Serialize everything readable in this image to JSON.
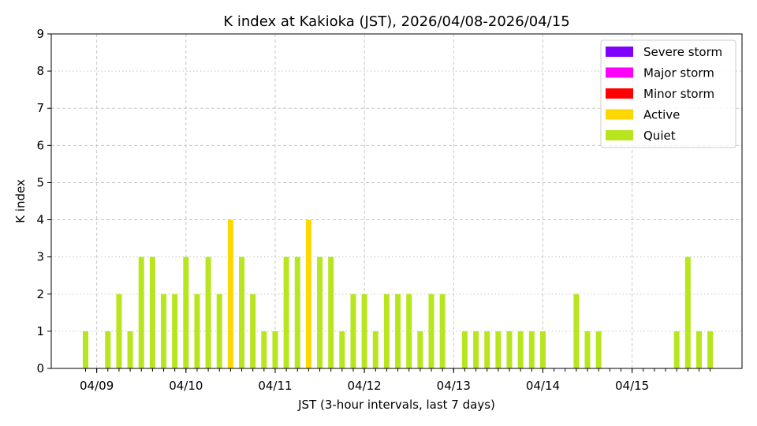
{
  "chart_data": {
    "type": "bar",
    "title": "K index at Kakioka (JST), 2026/04/08-2026/04/15",
    "xlabel": "JST (3-hour intervals, last 7 days)",
    "ylabel": "K index",
    "ylim": [
      0,
      9
    ],
    "yticks": [
      0,
      1,
      2,
      3,
      4,
      5,
      6,
      7,
      8,
      9
    ],
    "x_tick_labels": [
      "04/09",
      "04/10",
      "04/11",
      "04/12",
      "04/13",
      "04/14",
      "04/15"
    ],
    "interval_hours": 3,
    "bars": [
      {
        "t": "04/08 18:00",
        "k": 1
      },
      {
        "t": "04/08 21:00",
        "k": null
      },
      {
        "t": "04/09 00:00",
        "k": 1
      },
      {
        "t": "04/09 03:00",
        "k": 2
      },
      {
        "t": "04/09 06:00",
        "k": 1
      },
      {
        "t": "04/09 09:00",
        "k": 3
      },
      {
        "t": "04/09 12:00",
        "k": 3
      },
      {
        "t": "04/09 15:00",
        "k": 2
      },
      {
        "t": "04/09 18:00",
        "k": 2
      },
      {
        "t": "04/09 21:00",
        "k": 3
      },
      {
        "t": "04/10 00:00",
        "k": 2
      },
      {
        "t": "04/10 03:00",
        "k": 3
      },
      {
        "t": "04/10 06:00",
        "k": 2
      },
      {
        "t": "04/10 09:00",
        "k": 4
      },
      {
        "t": "04/10 12:00",
        "k": 3
      },
      {
        "t": "04/10 15:00",
        "k": 2
      },
      {
        "t": "04/10 18:00",
        "k": 1
      },
      {
        "t": "04/10 21:00",
        "k": 1
      },
      {
        "t": "04/11 00:00",
        "k": 3
      },
      {
        "t": "04/11 03:00",
        "k": 3
      },
      {
        "t": "04/11 06:00",
        "k": 4
      },
      {
        "t": "04/11 09:00",
        "k": 3
      },
      {
        "t": "04/11 12:00",
        "k": 3
      },
      {
        "t": "04/11 15:00",
        "k": 1
      },
      {
        "t": "04/11 18:00",
        "k": 2
      },
      {
        "t": "04/11 21:00",
        "k": 2
      },
      {
        "t": "04/12 00:00",
        "k": 1
      },
      {
        "t": "04/12 03:00",
        "k": 2
      },
      {
        "t": "04/12 06:00",
        "k": 2
      },
      {
        "t": "04/12 09:00",
        "k": 2
      },
      {
        "t": "04/12 12:00",
        "k": 1
      },
      {
        "t": "04/12 15:00",
        "k": 2
      },
      {
        "t": "04/12 18:00",
        "k": 2
      },
      {
        "t": "04/12 21:00",
        "k": null
      },
      {
        "t": "04/13 00:00",
        "k": 1
      },
      {
        "t": "04/13 03:00",
        "k": 1
      },
      {
        "t": "04/13 06:00",
        "k": 1
      },
      {
        "t": "04/13 09:00",
        "k": 1
      },
      {
        "t": "04/13 12:00",
        "k": 1
      },
      {
        "t": "04/13 15:00",
        "k": 1
      },
      {
        "t": "04/13 18:00",
        "k": 1
      },
      {
        "t": "04/13 21:00",
        "k": 1
      },
      {
        "t": "04/14 00:00",
        "k": null
      },
      {
        "t": "04/14 03:00",
        "k": null
      },
      {
        "t": "04/14 06:00",
        "k": 2
      },
      {
        "t": "04/14 09:00",
        "k": 1
      },
      {
        "t": "04/14 12:00",
        "k": 1
      },
      {
        "t": "04/14 15:00",
        "k": null
      },
      {
        "t": "04/14 18:00",
        "k": null
      },
      {
        "t": "04/14 21:00",
        "k": null
      },
      {
        "t": "04/15 00:00",
        "k": null
      },
      {
        "t": "04/15 03:00",
        "k": null
      },
      {
        "t": "04/15 06:00",
        "k": null
      },
      {
        "t": "04/15 09:00",
        "k": 1
      },
      {
        "t": "04/15 12:00",
        "k": 3
      },
      {
        "t": "04/15 15:00",
        "k": 1
      },
      {
        "t": "04/15 18:00",
        "k": 1
      }
    ],
    "legend": {
      "placement": "top-right",
      "entries": [
        {
          "label": "Severe storm",
          "color": "#7f00ff",
          "min_k": 8
        },
        {
          "label": "Major storm",
          "color": "#ff00ff",
          "min_k": 6
        },
        {
          "label": "Minor storm",
          "color": "#ff0000",
          "min_k": 5
        },
        {
          "label": "Active",
          "color": "#ffd700",
          "min_k": 4
        },
        {
          "label": "Quiet",
          "color": "#b8e61e",
          "min_k": 0
        }
      ]
    },
    "grid": true
  }
}
